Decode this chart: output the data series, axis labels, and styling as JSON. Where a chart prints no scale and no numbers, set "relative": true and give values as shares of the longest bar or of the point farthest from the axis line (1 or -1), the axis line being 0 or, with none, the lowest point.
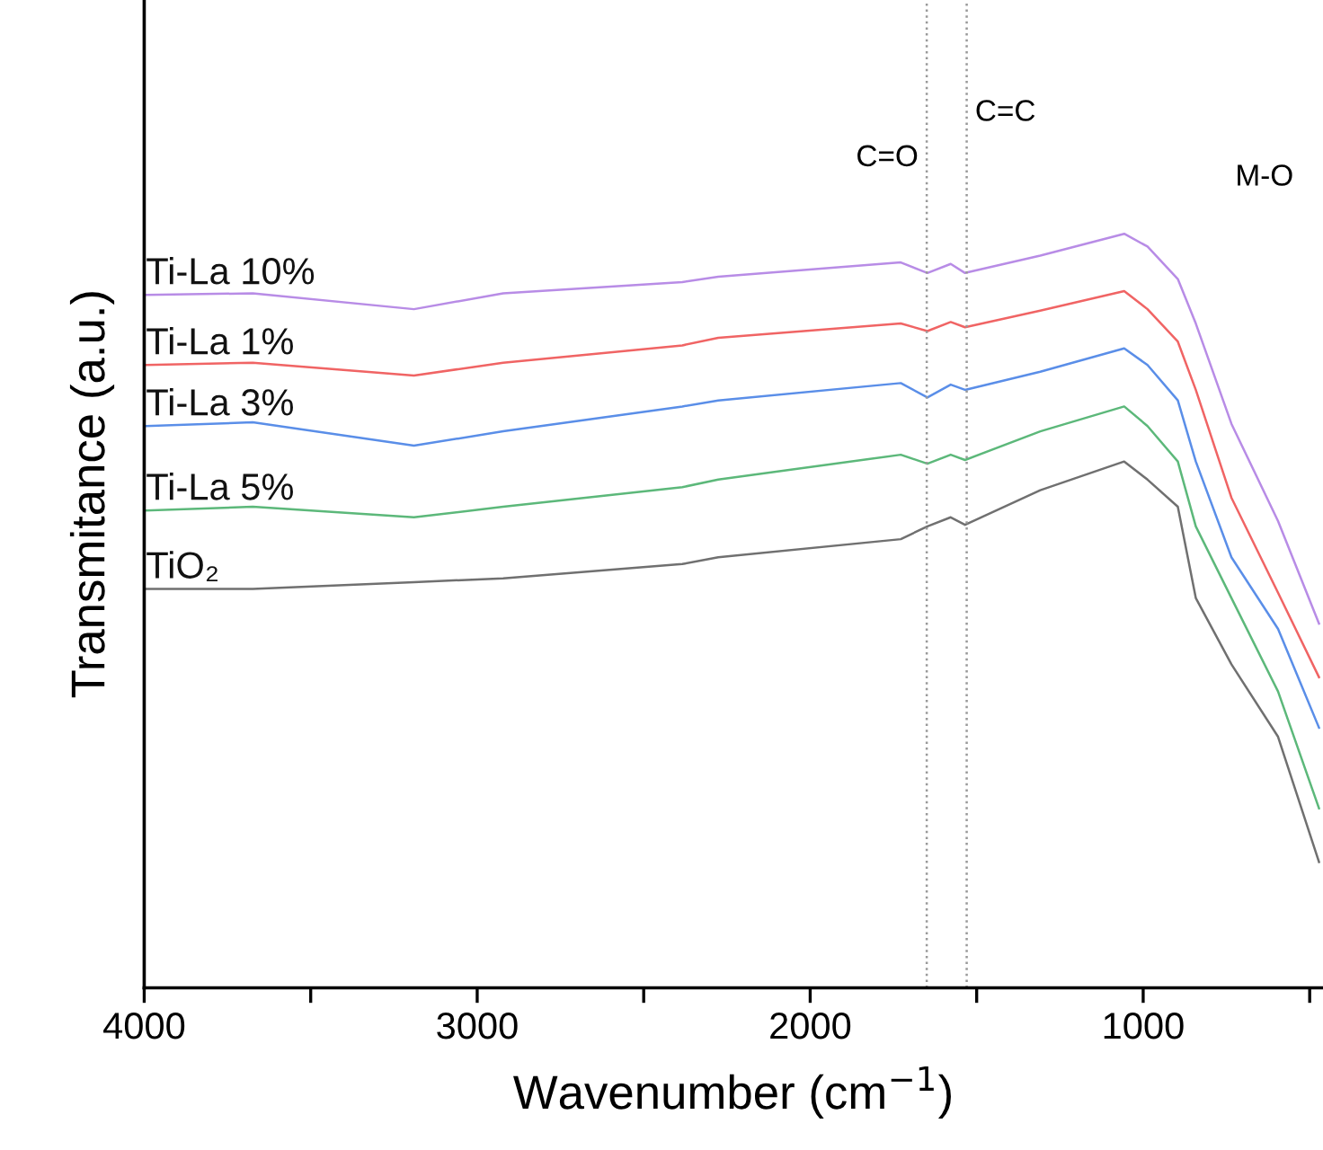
{
  "chart_data": {
    "type": "line",
    "xlabel": "Wavenumber (cm$^{−1}$)",
    "ylabel": "Transmitance (a.u.)",
    "relative": true,
    "x": [
      3995,
      3674,
      3190,
      2922,
      2384,
      2276,
      1728,
      1648,
      1578,
      1535,
      1309,
      1057,
      987,
      896,
      842,
      735,
      595,
      472
    ],
    "xlim": [
      4000,
      460
    ],
    "xticks": [
      4000,
      {
        "value": 3500,
        "label": null
      },
      3000,
      {
        "value": 2500,
        "label": null
      },
      2000,
      {
        "value": 1500,
        "label": null
      },
      1000,
      {
        "value": 500,
        "label": null
      }
    ],
    "series": [
      {
        "name": "Ti-La 10%",
        "color": "#b88ce6",
        "values": [
          0.919,
          0.921,
          0.9,
          0.921,
          0.936,
          0.943,
          0.962,
          0.948,
          0.96,
          0.948,
          0.971,
          1.0,
          0.983,
          0.94,
          0.881,
          0.748,
          0.619,
          0.483
        ]
      },
      {
        "name": "Ti-La 1%",
        "color": "#f06464",
        "values": [
          0.826,
          0.829,
          0.812,
          0.829,
          0.852,
          0.862,
          0.881,
          0.871,
          0.883,
          0.876,
          0.898,
          0.924,
          0.9,
          0.857,
          0.793,
          0.65,
          0.524,
          0.412
        ]
      },
      {
        "name": "Ti-La 3%",
        "color": "#5a8ee8",
        "values": [
          0.745,
          0.75,
          0.719,
          0.738,
          0.771,
          0.779,
          0.802,
          0.783,
          0.8,
          0.793,
          0.817,
          0.848,
          0.826,
          0.779,
          0.698,
          0.571,
          0.476,
          0.345
        ]
      },
      {
        "name": "Ti-La 5%",
        "color": "#5cb87a",
        "values": [
          0.633,
          0.638,
          0.624,
          0.638,
          0.664,
          0.674,
          0.707,
          0.695,
          0.707,
          0.7,
          0.738,
          0.771,
          0.745,
          0.698,
          0.612,
          0.517,
          0.393,
          0.238
        ]
      },
      {
        "name": "TiO₂",
        "color": "#707070",
        "values": [
          0.529,
          0.529,
          0.538,
          0.543,
          0.562,
          0.571,
          0.595,
          0.612,
          0.624,
          0.614,
          0.66,
          0.698,
          0.674,
          0.638,
          0.517,
          0.429,
          0.333,
          0.167
        ]
      }
    ],
    "ref_lines": [
      {
        "axis": "x",
        "value": 1650,
        "label": "C=O",
        "color": "#999999",
        "line_style": "dotted"
      },
      {
        "axis": "x",
        "value": 1530,
        "label": "C=C",
        "color": "#999999",
        "line_style": "dotted"
      }
    ],
    "annotations": [
      "M-O"
    ],
    "grid": false,
    "legend": false,
    "marker": "none",
    "line_style": "solid"
  }
}
